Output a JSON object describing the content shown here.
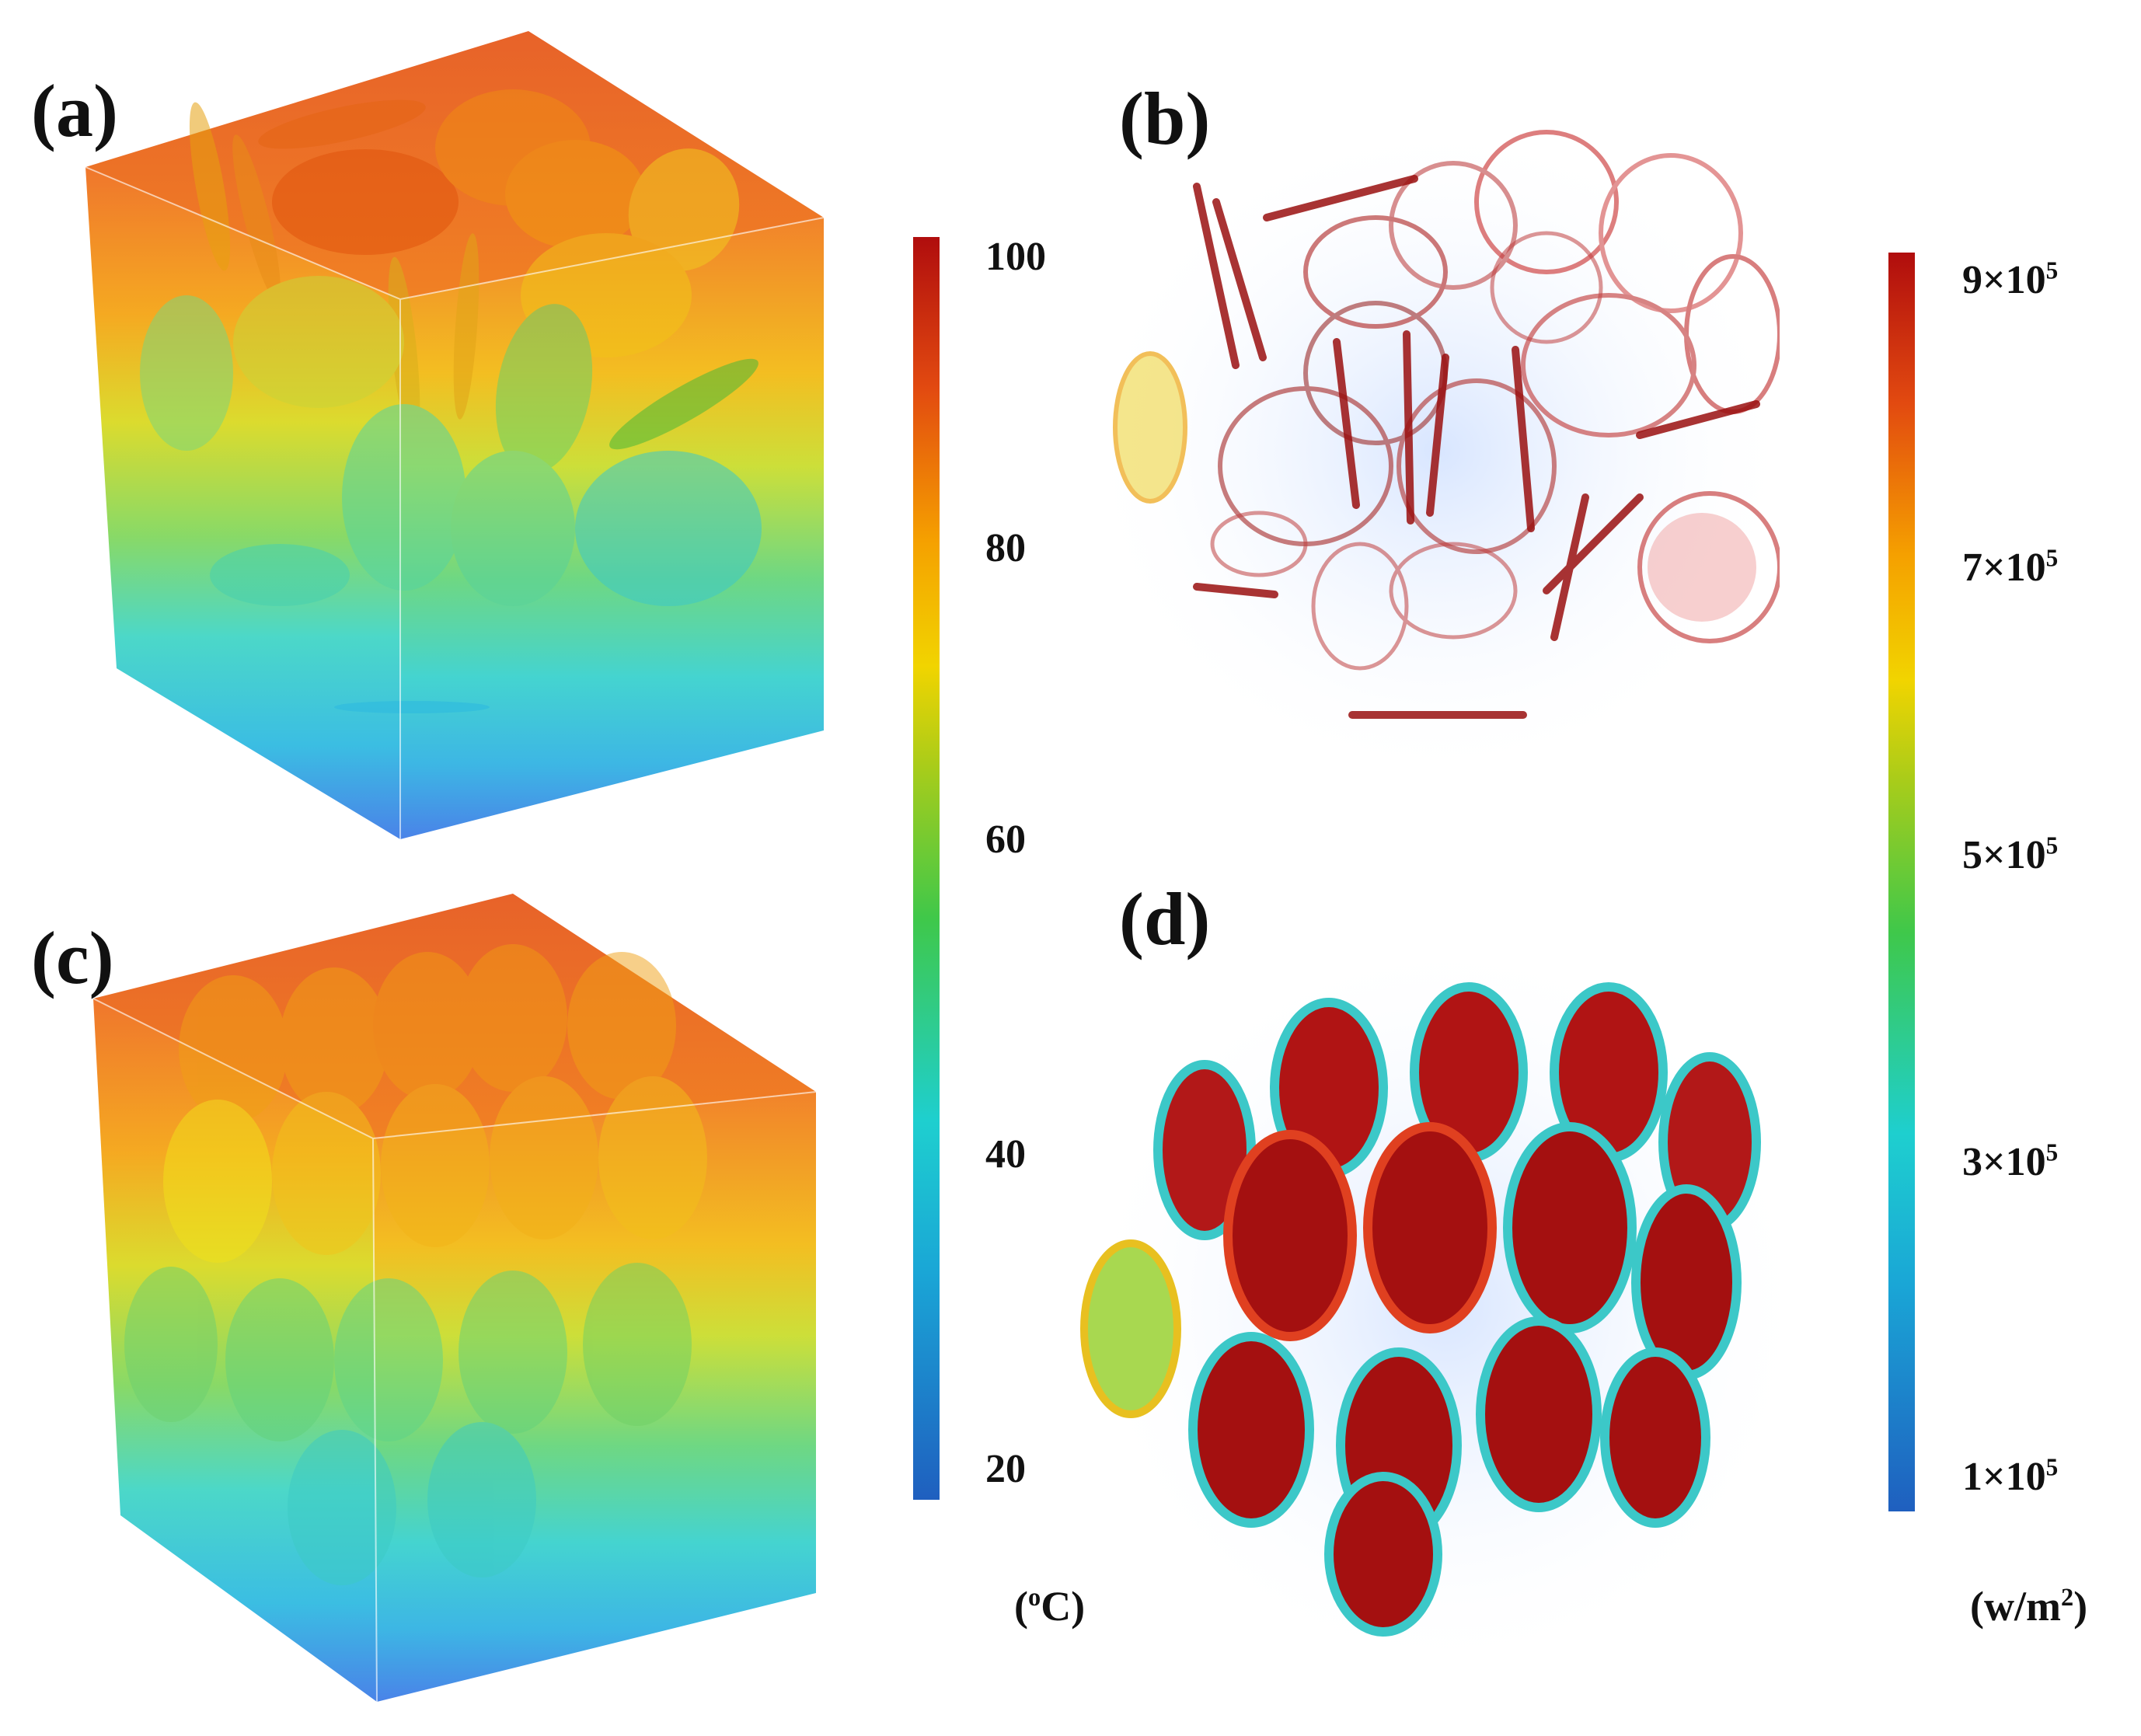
{
  "panels": {
    "a": "(a)",
    "b": "(b)",
    "c": "(c)",
    "d": "(d)"
  },
  "temperature_colorbar": {
    "ticks": [
      "100",
      "80",
      "60",
      "40",
      "20"
    ],
    "unit_prefix": "(",
    "unit_degree": "o",
    "unit_suffix": "C)"
  },
  "heatflux_colorbar": {
    "ticks": [
      {
        "mantissa": "9×10",
        "exp": "5"
      },
      {
        "mantissa": "7×10",
        "exp": "5"
      },
      {
        "mantissa": "5×10",
        "exp": "5"
      },
      {
        "mantissa": "3×10",
        "exp": "5"
      },
      {
        "mantissa": "1×10",
        "exp": "5"
      }
    ],
    "unit_prefix": "(w/m",
    "unit_exp": "2",
    "unit_suffix": ")"
  },
  "colors": {
    "hot": "#c81e0e",
    "warm": "#f59a10",
    "mid": "#e7e022",
    "cool": "#2ec8c0",
    "cold": "#3a7fe0"
  }
}
